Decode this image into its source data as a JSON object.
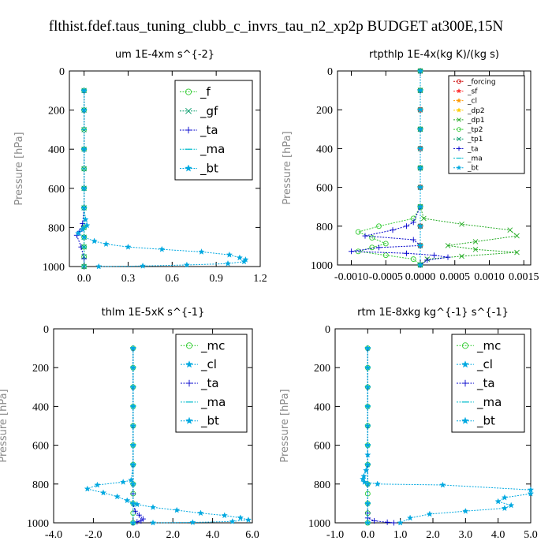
{
  "title": "flthist.fdef.taus_tuning_clubb_c_invrs_tau_n2_xp2p  BUDGET at300E,15N",
  "chart_data": [
    {
      "type": "line",
      "title": "um   1E-4xm s^{-2}",
      "ylabel": "Pressure [hPa]",
      "xlim": [
        -0.1,
        1.2
      ],
      "ylim": [
        1000,
        0
      ],
      "xticks": [
        0.0,
        0.3,
        0.6,
        0.9,
        1.2
      ],
      "xtick_labels": [
        "0.0",
        "0.3",
        "0.6",
        "0.9",
        "1.2"
      ],
      "yticks": [
        0,
        200,
        400,
        600,
        800,
        1000
      ],
      "ytick_labels": [
        "0",
        "200",
        "400",
        "600",
        "800",
        "1000"
      ],
      "legend": "top-right",
      "series": [
        {
          "name": "_f",
          "color": "#33cc33",
          "marker": "circle",
          "x": [
            0,
            0,
            0,
            0,
            0,
            0,
            0,
            0,
            0,
            0,
            0,
            0
          ],
          "y": [
            100,
            200,
            300,
            400,
            500,
            600,
            700,
            800,
            850,
            900,
            950,
            1000
          ]
        },
        {
          "name": "_gf",
          "color": "#009966",
          "marker": "x",
          "x": [
            0,
            0,
            0,
            0,
            0,
            0,
            0,
            0,
            0,
            0,
            0,
            0
          ],
          "y": [
            100,
            200,
            300,
            400,
            500,
            600,
            700,
            800,
            850,
            900,
            950,
            1000
          ]
        },
        {
          "name": "_ta",
          "color": "#0000cc",
          "marker": "plus",
          "x": [
            0,
            0,
            0,
            0,
            0,
            -0.01,
            -0.03,
            -0.05,
            -0.02,
            0.0,
            0.0
          ],
          "y": [
            100,
            200,
            400,
            600,
            700,
            780,
            820,
            840,
            900,
            960,
            1000
          ]
        },
        {
          "name": "_ma",
          "color": "#00bbcc",
          "marker": "dash",
          "x": [
            0,
            0,
            0,
            0,
            0,
            0,
            0,
            0,
            0,
            0
          ],
          "y": [
            100,
            200,
            300,
            400,
            500,
            600,
            700,
            800,
            900,
            1000
          ]
        },
        {
          "name": "_bt",
          "color": "#00a8e0",
          "marker": "star",
          "x": [
            0,
            0,
            0,
            0,
            0,
            0.01,
            0.02,
            -0.01,
            -0.04,
            0.0,
            0.07,
            0.15,
            0.3,
            0.53,
            0.8,
            0.99,
            1.06,
            1.1,
            1.09,
            0.98,
            0.7,
            0.4,
            0.1
          ],
          "y": [
            100,
            200,
            400,
            600,
            700,
            760,
            790,
            810,
            830,
            850,
            870,
            885,
            900,
            912,
            925,
            940,
            955,
            965,
            975,
            985,
            992,
            997,
            1000
          ]
        }
      ]
    },
    {
      "type": "line",
      "title": "rtpthlp   1E-4x(kg K)/(kg s)",
      "ylabel": "Pressure [hPa]",
      "xlim": [
        -0.0012,
        0.0016
      ],
      "ylim": [
        1000,
        0
      ],
      "xticks": [
        -0.001,
        -0.0005,
        0.0,
        0.0005,
        0.001,
        0.0015
      ],
      "xtick_labels": [
        "-0.0010",
        "-0.0005",
        "0.0000",
        "0.0005",
        "0.0010",
        "0.0015"
      ],
      "yticks": [
        0,
        200,
        400,
        600,
        800,
        1000
      ],
      "ytick_labels": [
        "0",
        "200",
        "400",
        "600",
        "800",
        "1000"
      ],
      "legend": "top-right",
      "series": [
        {
          "name": "_forcing",
          "color": "#cc0000",
          "marker": "circle",
          "x": [
            0,
            0,
            0,
            0,
            0,
            0,
            0,
            0,
            0,
            0,
            0
          ],
          "y": [
            0,
            100,
            200,
            300,
            400,
            500,
            600,
            700,
            800,
            900,
            1000
          ]
        },
        {
          "name": "_sf",
          "color": "#ff3333",
          "marker": "star",
          "x": [
            0,
            0,
            0,
            0,
            0,
            0,
            0,
            0,
            0,
            0,
            0
          ],
          "y": [
            0,
            100,
            200,
            300,
            400,
            500,
            600,
            700,
            800,
            900,
            1000
          ]
        },
        {
          "name": "_cl",
          "color": "#ff9900",
          "marker": "star",
          "x": [
            0,
            0,
            0,
            0,
            0,
            0,
            0,
            0,
            0,
            0,
            0
          ],
          "y": [
            0,
            100,
            200,
            300,
            400,
            500,
            600,
            700,
            800,
            900,
            1000
          ]
        },
        {
          "name": "_dp2",
          "color": "#ffcc00",
          "marker": "star",
          "x": [
            0,
            0,
            0,
            0,
            0,
            0,
            0,
            0,
            0,
            0,
            0
          ],
          "y": [
            0,
            100,
            200,
            300,
            400,
            500,
            600,
            700,
            800,
            900,
            1000
          ]
        },
        {
          "name": "_dp1",
          "color": "#22aa22",
          "marker": "x",
          "x": [
            0,
            0,
            0,
            0,
            0,
            5e-05,
            0.0006,
            0.0013,
            0.0014,
            0.0008,
            0.0004,
            0.0008,
            0.0014,
            0.0006,
            0.0001,
            0
          ],
          "y": [
            0,
            100,
            300,
            500,
            700,
            760,
            790,
            820,
            850,
            880,
            900,
            920,
            935,
            955,
            970,
            1000
          ]
        },
        {
          "name": "_tp2",
          "color": "#33cc33",
          "marker": "circle",
          "x": [
            0,
            0,
            0,
            0,
            0,
            -0.0001,
            -0.0006,
            -0.0009,
            -0.0007,
            -0.0005,
            -0.0007,
            -0.0009,
            -0.0005,
            -0.0001,
            0
          ],
          "y": [
            0,
            100,
            300,
            500,
            700,
            760,
            800,
            830,
            860,
            890,
            910,
            930,
            950,
            970,
            1000
          ]
        },
        {
          "name": "_tp1",
          "color": "#009966",
          "marker": "x",
          "x": [
            0,
            0,
            0,
            0,
            0,
            0,
            0,
            0,
            0,
            0,
            0
          ],
          "y": [
            0,
            100,
            200,
            300,
            400,
            500,
            600,
            700,
            800,
            900,
            1000
          ]
        },
        {
          "name": "_ta",
          "color": "#0000cc",
          "marker": "plus",
          "x": [
            0,
            0,
            0,
            0,
            0,
            -0.0001,
            -0.0002,
            -0.0004,
            -0.0008,
            -0.0001,
            0.0,
            -0.0006,
            -0.001,
            -0.0002,
            0.0002,
            0.0004,
            0.0001,
            0
          ],
          "y": [
            0,
            100,
            300,
            500,
            700,
            780,
            800,
            820,
            850,
            870,
            900,
            910,
            930,
            940,
            950,
            960,
            975,
            1000
          ]
        },
        {
          "name": "_ma",
          "color": "#00bbcc",
          "marker": "dash",
          "x": [
            0,
            0,
            0,
            0,
            0,
            0,
            0,
            0,
            0,
            0,
            0
          ],
          "y": [
            0,
            100,
            200,
            300,
            400,
            500,
            600,
            700,
            800,
            900,
            1000
          ]
        },
        {
          "name": "_bt",
          "color": "#00a8e0",
          "marker": "star",
          "x": [
            0,
            0,
            0,
            0,
            0,
            0,
            0,
            0,
            0,
            0,
            0
          ],
          "y": [
            0,
            100,
            200,
            300,
            400,
            500,
            600,
            700,
            800,
            900,
            1000
          ]
        }
      ]
    },
    {
      "type": "line",
      "title": "thlm   1E-5xK s^{-1}",
      "ylabel": "Pressure [hPa]",
      "xlim": [
        -4.0,
        6.0
      ],
      "ylim": [
        1000,
        0
      ],
      "xticks": [
        -4.0,
        -2.0,
        0.0,
        2.0,
        4.0,
        6.0
      ],
      "xtick_labels": [
        "-4.0",
        "-2.0",
        "0.0",
        "2.0",
        "4.0",
        "6.0"
      ],
      "yticks": [
        0,
        200,
        400,
        600,
        800,
        1000
      ],
      "ytick_labels": [
        "0",
        "200",
        "400",
        "600",
        "800",
        "1000"
      ],
      "legend": "top-right",
      "series": [
        {
          "name": "_mc",
          "color": "#33cc33",
          "marker": "circle",
          "x": [
            0,
            0,
            0,
            0,
            0,
            0,
            0,
            0,
            0,
            0,
            0,
            0
          ],
          "y": [
            100,
            200,
            300,
            400,
            500,
            600,
            700,
            800,
            850,
            900,
            950,
            1000
          ]
        },
        {
          "name": "_cl",
          "color": "#00a8e0",
          "marker": "star",
          "x": [
            0,
            0,
            0,
            0,
            0,
            -0.1,
            -0.5,
            -1.8,
            -2.3,
            -1.5,
            -0.8,
            -0.3,
            0.2,
            1.0,
            2.2,
            3.4,
            4.6,
            5.4,
            5.8,
            5.0,
            3.0,
            1.0
          ],
          "y": [
            100,
            200,
            400,
            600,
            700,
            780,
            790,
            805,
            825,
            845,
            865,
            885,
            905,
            920,
            935,
            950,
            962,
            974,
            985,
            993,
            998,
            1000
          ]
        },
        {
          "name": "_ta",
          "color": "#0000cc",
          "marker": "plus",
          "x": [
            0,
            0,
            0,
            0,
            0,
            0,
            0,
            0.1,
            0.3,
            0.5,
            0.4,
            0.2,
            0
          ],
          "y": [
            100,
            300,
            500,
            700,
            800,
            850,
            900,
            940,
            960,
            980,
            990,
            995,
            1000
          ]
        },
        {
          "name": "_ma",
          "color": "#00bbcc",
          "marker": "dash",
          "x": [
            0,
            0,
            0,
            0,
            0,
            0,
            0,
            0,
            0,
            0
          ],
          "y": [
            100,
            200,
            300,
            400,
            500,
            600,
            700,
            800,
            900,
            1000
          ]
        },
        {
          "name": "_bt",
          "color": "#00a8e0",
          "marker": "star",
          "x": [
            0,
            0,
            0,
            0,
            0,
            0,
            0,
            0,
            0,
            0
          ],
          "y": [
            100,
            200,
            300,
            400,
            500,
            600,
            700,
            800,
            900,
            1000
          ]
        }
      ]
    },
    {
      "type": "line",
      "title": "rtm   1E-8xkg kg^{-1} s^{-1}",
      "ylabel": "Pressure [hPa]",
      "xlim": [
        -1.0,
        5.0
      ],
      "ylim": [
        1000,
        0
      ],
      "xticks": [
        -1.0,
        0.0,
        1.0,
        2.0,
        3.0,
        4.0,
        5.0
      ],
      "xtick_labels": [
        "-1.0",
        "0.0",
        "1.0",
        "2.0",
        "3.0",
        "4.0",
        "5.0"
      ],
      "yticks": [
        0,
        200,
        400,
        600,
        800,
        1000
      ],
      "ytick_labels": [
        "0",
        "200",
        "400",
        "600",
        "800",
        "1000"
      ],
      "legend": "top-right",
      "series": [
        {
          "name": "_mc",
          "color": "#33cc33",
          "marker": "circle",
          "x": [
            0,
            0,
            0,
            0,
            0,
            0,
            0,
            0,
            0,
            0,
            0,
            0
          ],
          "y": [
            100,
            200,
            300,
            400,
            500,
            600,
            700,
            800,
            850,
            900,
            950,
            1000
          ]
        },
        {
          "name": "_cl",
          "color": "#00a8e0",
          "marker": "star",
          "x": [
            0,
            0,
            0,
            0,
            0,
            0,
            -0.05,
            -0.12,
            -0.15,
            -0.1,
            0.3,
            2.3,
            5.0,
            5.0,
            4.2,
            4.0,
            4.4,
            4.2,
            3.0,
            1.9,
            1.3,
            1.0
          ],
          "y": [
            100,
            200,
            400,
            600,
            650,
            700,
            730,
            760,
            775,
            790,
            800,
            805,
            830,
            850,
            870,
            890,
            910,
            925,
            940,
            955,
            975,
            1000
          ]
        },
        {
          "name": "_ta",
          "color": "#0000cc",
          "marker": "plus",
          "x": [
            0,
            0,
            0,
            0,
            0,
            0,
            0,
            0,
            0.2,
            0.6,
            0.8
          ],
          "y": [
            100,
            300,
            500,
            700,
            800,
            900,
            950,
            975,
            990,
            997,
            1000
          ]
        },
        {
          "name": "_ma",
          "color": "#00bbcc",
          "marker": "dash",
          "x": [
            0,
            0,
            0,
            0,
            0,
            0,
            0,
            0,
            0,
            0
          ],
          "y": [
            100,
            200,
            300,
            400,
            500,
            600,
            700,
            800,
            900,
            1000
          ]
        },
        {
          "name": "_bt",
          "color": "#00a8e0",
          "marker": "star",
          "x": [
            0,
            0,
            0,
            0,
            0,
            0,
            0,
            0,
            0,
            0
          ],
          "y": [
            100,
            200,
            300,
            400,
            500,
            600,
            700,
            800,
            900,
            1000
          ]
        }
      ]
    }
  ]
}
